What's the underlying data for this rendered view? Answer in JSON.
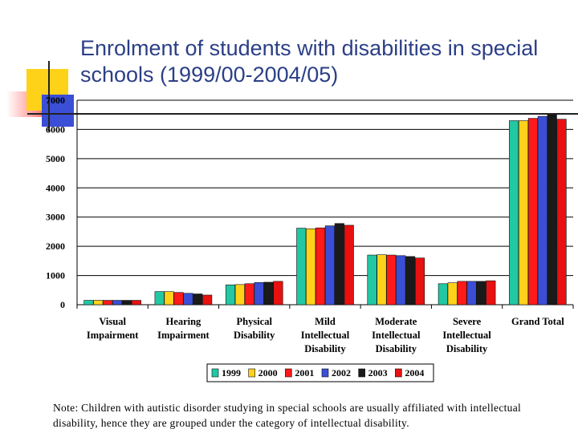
{
  "title": "Enrolment of students with disabilities in special schools (1999/00-2004/05)",
  "note": "Note: Children with autistic disorder studying in special schools are usually affiliated with intellectual disability, hence they are grouped under the category of intellectual disability.",
  "chart_data": {
    "type": "bar",
    "categories": [
      [
        "Visual",
        "Impairment"
      ],
      [
        "Hearing",
        "Impairment"
      ],
      [
        "Physical",
        "Disability"
      ],
      [
        "Mild",
        "Intellectual",
        "Disability"
      ],
      [
        "Moderate",
        "Intellectual",
        "Disability"
      ],
      [
        "Severe",
        "Intellectual",
        "Disability"
      ],
      [
        "Grand Total"
      ]
    ],
    "series": [
      {
        "name": "1999",
        "color": "#22c7a3",
        "values": [
          150,
          450,
          680,
          2620,
          1700,
          720,
          6300
        ]
      },
      {
        "name": "2000",
        "color": "#ffd21a",
        "values": [
          150,
          450,
          690,
          2600,
          1710,
          750,
          6300
        ]
      },
      {
        "name": "2001",
        "color": "#ff1a1a",
        "values": [
          150,
          420,
          720,
          2630,
          1700,
          800,
          6380
        ]
      },
      {
        "name": "2002",
        "color": "#3a4fd6",
        "values": [
          150,
          390,
          760,
          2700,
          1680,
          800,
          6450
        ]
      },
      {
        "name": "2003",
        "color": "#1a1a1a",
        "values": [
          150,
          370,
          770,
          2780,
          1650,
          800,
          6500
        ]
      },
      {
        "name": "2004",
        "color": "#e81010",
        "values": [
          150,
          330,
          800,
          2720,
          1600,
          820,
          6350
        ]
      }
    ],
    "yticks": [
      0,
      1000,
      2000,
      3000,
      4000,
      5000,
      6000,
      7000
    ],
    "ylim": [
      0,
      7000
    ],
    "grid": true,
    "legend": "bottom"
  }
}
